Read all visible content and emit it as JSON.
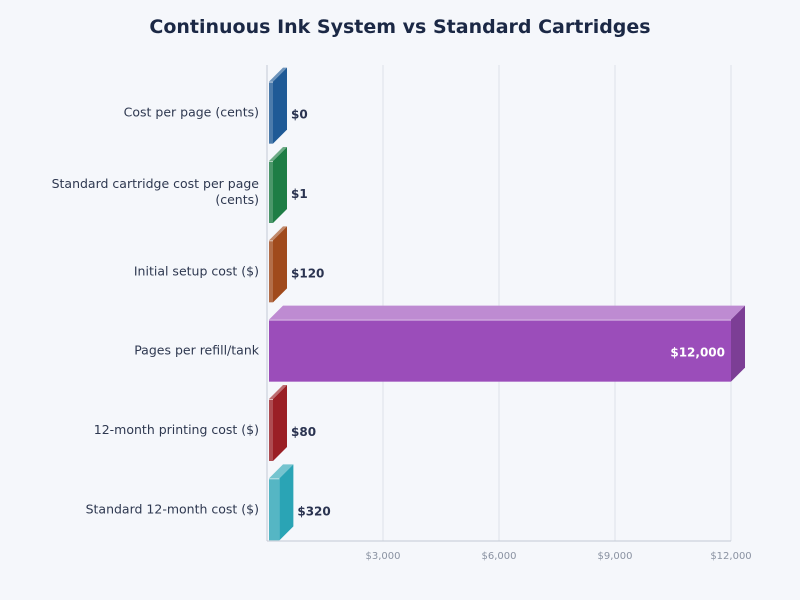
{
  "chart_data": {
    "type": "bar",
    "orientation": "horizontal",
    "style": "3d",
    "title": "Continuous Ink System vs Standard Cartridges",
    "categories": [
      "Cost per page (cents)",
      "Standard cartridge cost per page (cents)",
      "Initial setup cost ($)",
      "Pages per refill/tank",
      "12-month printing cost ($)",
      "Standard 12-month cost ($)"
    ],
    "values": [
      0,
      1,
      120,
      12000,
      80,
      320
    ],
    "value_labels": [
      "$0",
      "$1",
      "$120",
      "$12,000",
      "$80",
      "$320"
    ],
    "colors": [
      "#1f5a96",
      "#1e7d45",
      "#a04a1c",
      "#9b4dba",
      "#9a1f25",
      "#2aa4b5"
    ],
    "xlim": [
      0,
      12000
    ],
    "x_ticks": [
      3000,
      6000,
      9000,
      12000
    ],
    "x_tick_labels": [
      "$3,000",
      "$6,000",
      "$9,000",
      "$12,000"
    ],
    "xlabel": "",
    "ylabel": "",
    "grid": "vertical",
    "legend": "none"
  }
}
